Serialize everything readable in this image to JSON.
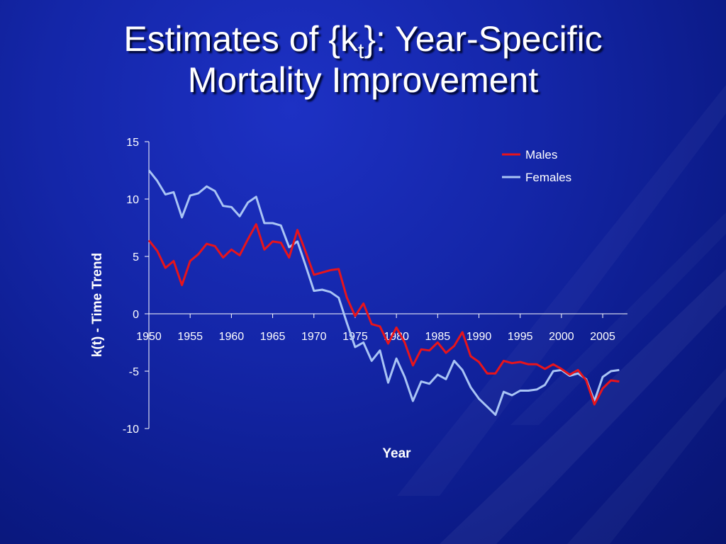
{
  "slide": {
    "title_prefix": "Estimates of {k",
    "title_subscript": "t",
    "title_suffix": "}: Year-Specific",
    "title_line2": "Mortality Improvement"
  },
  "colors": {
    "background": "#1426a8",
    "males": "#e8141b",
    "females": "#a9c4f5",
    "text": "#ffffff"
  },
  "chart_data": {
    "type": "line",
    "title": "",
    "xlabel": "Year",
    "ylabel": "k(t) - Time Trend",
    "xlim": [
      1950,
      2008
    ],
    "ylim": [
      -10,
      15
    ],
    "x_ticks": [
      "1950",
      "1955",
      "1960",
      "1965",
      "1970",
      "1975",
      "1980",
      "1985",
      "1990",
      "1995",
      "2000",
      "2005"
    ],
    "y_ticks": [
      "15",
      "10",
      "5",
      "0",
      "-5",
      "-10"
    ],
    "legend_position": "top-right",
    "grid": false,
    "x": [
      1950,
      1951,
      1952,
      1953,
      1954,
      1955,
      1956,
      1957,
      1958,
      1959,
      1960,
      1961,
      1962,
      1963,
      1964,
      1965,
      1966,
      1967,
      1968,
      1969,
      1970,
      1971,
      1972,
      1973,
      1974,
      1975,
      1976,
      1977,
      1978,
      1979,
      1980,
      1981,
      1982,
      1983,
      1984,
      1985,
      1986,
      1987,
      1988,
      1989,
      1990,
      1991,
      1992,
      1993,
      1994,
      1995,
      1996,
      1997,
      1998,
      1999,
      2000,
      2001,
      2002,
      2003,
      2004,
      2005,
      2006,
      2007
    ],
    "series": [
      {
        "name": "Males",
        "color": "#e8141b",
        "values": [
          6.4,
          5.5,
          4.0,
          4.6,
          2.5,
          4.6,
          5.2,
          6.1,
          5.9,
          4.9,
          5.6,
          5.1,
          6.5,
          7.8,
          5.6,
          6.3,
          6.2,
          4.9,
          7.3,
          5.4,
          3.4,
          3.6,
          3.8,
          3.9,
          1.4,
          -0.2,
          0.9,
          -0.9,
          -1.1,
          -2.6,
          -1.2,
          -2.5,
          -4.5,
          -3.1,
          -3.2,
          -2.5,
          -3.4,
          -2.8,
          -1.6,
          -3.7,
          -4.2,
          -5.2,
          -5.2,
          -4.1,
          -4.3,
          -4.2,
          -4.4,
          -4.4,
          -4.8,
          -4.4,
          -4.8,
          -5.3,
          -4.9,
          -5.8,
          -7.9,
          -6.5,
          -5.8,
          -5.9
        ]
      },
      {
        "name": "Females",
        "color": "#a9c4f5",
        "values": [
          12.5,
          11.6,
          10.4,
          10.6,
          8.4,
          10.3,
          10.5,
          11.1,
          10.7,
          9.4,
          9.3,
          8.5,
          9.7,
          10.2,
          7.9,
          7.9,
          7.7,
          5.8,
          6.3,
          4.2,
          2.0,
          2.1,
          1.9,
          1.4,
          -0.8,
          -2.9,
          -2.5,
          -4.1,
          -3.2,
          -6.0,
          -3.9,
          -5.5,
          -7.6,
          -5.9,
          -6.1,
          -5.3,
          -5.7,
          -4.1,
          -4.9,
          -6.4,
          -7.4,
          -8.1,
          -8.8,
          -6.8,
          -7.1,
          -6.7,
          -6.7,
          -6.6,
          -6.2,
          -5.0,
          -4.9,
          -5.4,
          -5.2,
          -5.7,
          -7.6,
          -5.5,
          -5.0,
          -4.9
        ]
      }
    ]
  }
}
